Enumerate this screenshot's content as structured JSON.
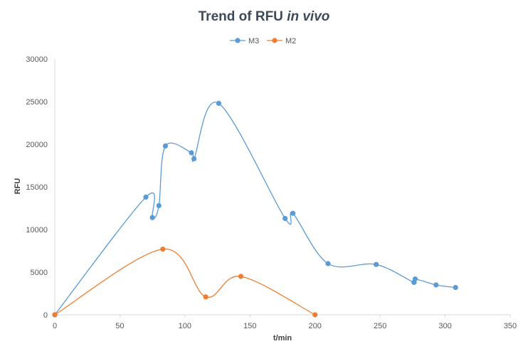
{
  "chart_data": {
    "type": "scatter",
    "title_main": "Trend of RFU ",
    "title_italic": "in vivo",
    "xlabel": "t/min",
    "ylabel": "RFU",
    "xlim": [
      0,
      350
    ],
    "ylim": [
      0,
      30000
    ],
    "x_ticks": [
      0,
      50,
      100,
      150,
      200,
      250,
      300,
      350
    ],
    "y_ticks": [
      0,
      5000,
      10000,
      15000,
      20000,
      25000,
      30000
    ],
    "grid": false,
    "legend_position": "top",
    "smooth_lines": true,
    "series": [
      {
        "name": "M3",
        "color": "#5b9bd5",
        "points": [
          [
            0,
            0
          ],
          [
            70,
            13800
          ],
          [
            75,
            11400
          ],
          [
            80,
            12800
          ],
          [
            85,
            19800
          ],
          [
            105,
            19000
          ],
          [
            107,
            18300
          ],
          [
            126,
            24800
          ],
          [
            177,
            11300
          ],
          [
            183,
            11900
          ],
          [
            210,
            6000
          ],
          [
            247,
            5900
          ],
          [
            276,
            3800
          ],
          [
            277,
            4200
          ],
          [
            293,
            3500
          ],
          [
            308,
            3200
          ]
        ]
      },
      {
        "name": "M2",
        "color": "#ed7d31",
        "points": [
          [
            0,
            0
          ],
          [
            83,
            7700
          ],
          [
            116,
            2100
          ],
          [
            143,
            4500
          ],
          [
            200,
            0
          ]
        ]
      }
    ]
  }
}
